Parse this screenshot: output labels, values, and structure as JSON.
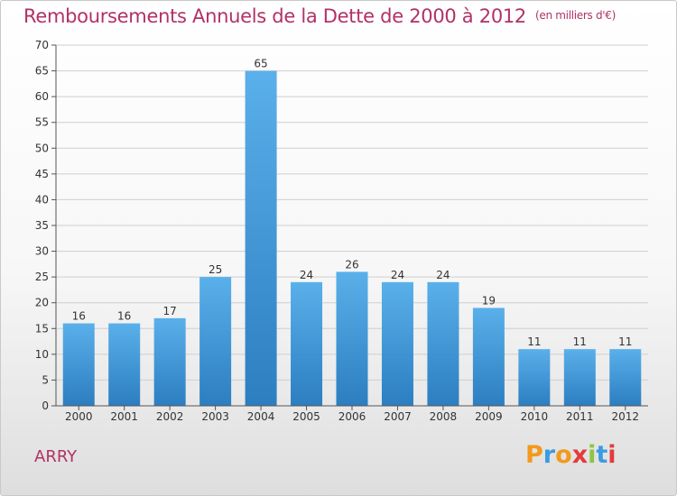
{
  "header": {
    "title": "Remboursements Annuels de la Dette de 2000 à 2012",
    "unit": "(en milliers d'€)"
  },
  "commune": "ARRY",
  "logo": {
    "letters": [
      "P",
      "r",
      "o",
      "x",
      "i",
      "t",
      "i"
    ]
  },
  "colors": {
    "title": "#b23166",
    "bar_top": "#5ab0ea",
    "bar_bottom": "#2c7ec0"
  },
  "chart_data": {
    "type": "bar",
    "title": "Remboursements Annuels de la Dette de 2000 à 2012",
    "subtitle": "(en milliers d'€)",
    "categories": [
      "2000",
      "2001",
      "2002",
      "2003",
      "2004",
      "2005",
      "2006",
      "2007",
      "2008",
      "2009",
      "2010",
      "2011",
      "2012"
    ],
    "values": [
      16,
      16,
      17,
      25,
      65,
      24,
      26,
      24,
      24,
      19,
      11,
      11,
      11
    ],
    "ylim": [
      0,
      70
    ],
    "yticks": [
      0,
      5,
      10,
      15,
      20,
      25,
      30,
      35,
      40,
      45,
      50,
      55,
      60,
      65,
      70
    ],
    "grid": true,
    "data_labels": true
  }
}
